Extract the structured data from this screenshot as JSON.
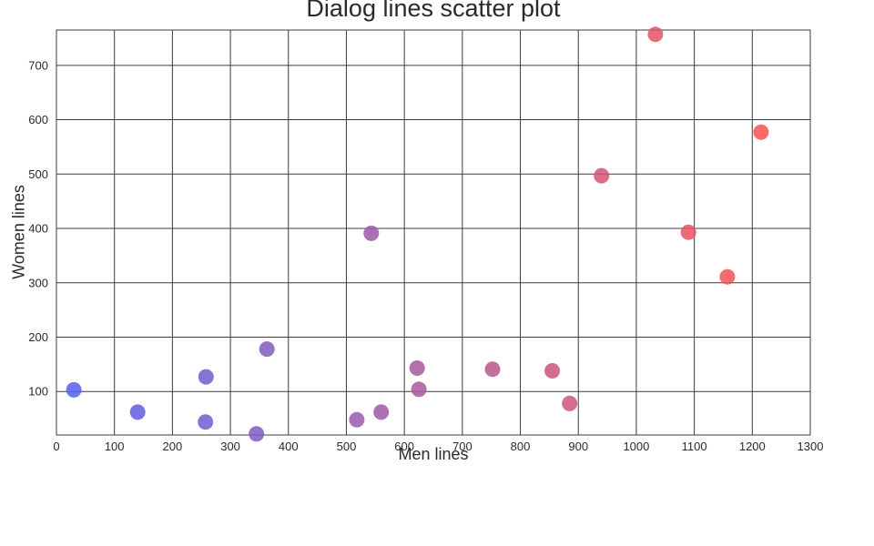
{
  "chart_data": {
    "type": "scatter",
    "title": "Dialog lines scatter plot",
    "xlabel": "Men lines",
    "ylabel": "Women lines",
    "xlim": [
      0,
      1300
    ],
    "ylim": [
      20,
      765
    ],
    "x_ticks": [
      0,
      100,
      200,
      300,
      400,
      500,
      600,
      700,
      800,
      900,
      1000,
      1100,
      1200,
      1300
    ],
    "y_ticks": [
      100,
      200,
      300,
      400,
      500,
      600,
      700
    ],
    "grid": true,
    "legend": "none",
    "marker_radius": 8.5,
    "marker_opacity": 0.85,
    "color_low": "#505ff0",
    "color_high": "#ff504b",
    "color_domain": [
      0,
      1250
    ],
    "points": [
      {
        "x": 30,
        "y": 103
      },
      {
        "x": 140,
        "y": 62
      },
      {
        "x": 258,
        "y": 127
      },
      {
        "x": 257,
        "y": 44
      },
      {
        "x": 345,
        "y": 22
      },
      {
        "x": 363,
        "y": 178
      },
      {
        "x": 518,
        "y": 48
      },
      {
        "x": 543,
        "y": 391
      },
      {
        "x": 560,
        "y": 62
      },
      {
        "x": 622,
        "y": 143
      },
      {
        "x": 625,
        "y": 104
      },
      {
        "x": 752,
        "y": 141
      },
      {
        "x": 855,
        "y": 138
      },
      {
        "x": 885,
        "y": 78
      },
      {
        "x": 940,
        "y": 497
      },
      {
        "x": 1033,
        "y": 757
      },
      {
        "x": 1090,
        "y": 393
      },
      {
        "x": 1157,
        "y": 311
      },
      {
        "x": 1215,
        "y": 577
      }
    ]
  }
}
